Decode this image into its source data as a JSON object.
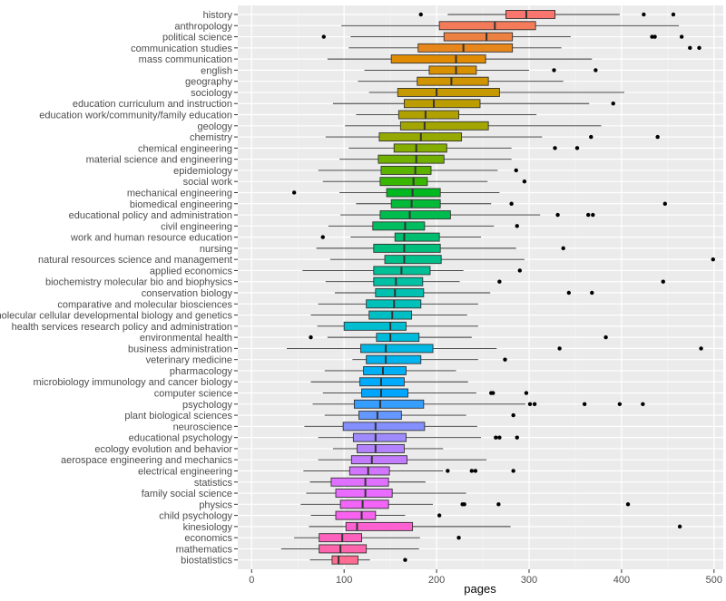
{
  "chart_data": {
    "type": "boxplot",
    "title": "",
    "xlabel": "pages",
    "ylabel": "",
    "xlim": [
      -15,
      510
    ],
    "x_ticks": [
      0,
      100,
      200,
      300,
      400,
      500
    ],
    "x_tick_labels": [
      "0",
      "100",
      "200",
      "300",
      "400",
      "500"
    ],
    "grid": true,
    "legend": "none",
    "categories": [
      "history",
      "anthropology",
      "political science",
      "communication studies",
      "mass communication",
      "english",
      "geography",
      "sociology",
      "education curriculum and instruction",
      "education work/community/family education",
      "geology",
      "chemistry",
      "chemical engineering",
      "material science and engineering",
      "epidemiology",
      "social work",
      "mechanical engineering",
      "biomedical engineering",
      "educational policy and administration",
      "civil engineering",
      "work and human resource education",
      "nursing",
      "natural resources science and management",
      "applied economics",
      "biochemistry molecular bio and biophysics",
      "conservation biology",
      "comparative and molecular biosciences",
      "molecular cellular developmental biology and genetics",
      "health services research policy and administration",
      "environmental health",
      "business administration",
      "veterinary medicine",
      "pharmacology",
      "microbiology immunology and cancer biology",
      "computer science",
      "psychology",
      "plant biological sciences",
      "neuroscience",
      "educational psychology",
      "ecology evolution and behavior",
      "aerospace engineering and mechanics",
      "electrical engineering",
      "statistics",
      "family social science",
      "physics",
      "child psychology",
      "kinesiology",
      "economics",
      "mathematics",
      "biostatistics"
    ],
    "series": [
      {
        "category": "history",
        "whisker_low": 212,
        "q1": 275,
        "median": 297,
        "q3": 328,
        "whisker_high": 398,
        "outliers": [
          183,
          424,
          456
        ],
        "color": "#F8766D"
      },
      {
        "category": "anthropology",
        "whisker_low": 97,
        "q1": 203,
        "median": 263,
        "q3": 307,
        "whisker_high": 462,
        "outliers": [],
        "color": "#F37B59"
      },
      {
        "category": "political science",
        "whisker_low": 107,
        "q1": 208,
        "median": 254,
        "q3": 282,
        "whisker_high": 345,
        "outliers": [
          78,
          433,
          436,
          465
        ],
        "color": "#ED8141"
      },
      {
        "category": "communication studies",
        "whisker_low": 105,
        "q1": 180,
        "median": 229,
        "q3": 282,
        "whisker_high": 335,
        "outliers": [
          474,
          484
        ],
        "color": "#E7861B"
      },
      {
        "category": "mass communication",
        "whisker_low": 82,
        "q1": 151,
        "median": 221,
        "q3": 253,
        "whisker_high": 368,
        "outliers": [],
        "color": "#E08B00"
      },
      {
        "category": "english",
        "whisker_low": 122,
        "q1": 192,
        "median": 221,
        "q3": 243,
        "whisker_high": 300,
        "outliers": [
          327,
          372
        ],
        "color": "#D89000"
      },
      {
        "category": "geography",
        "whisker_low": 115,
        "q1": 179,
        "median": 216,
        "q3": 256,
        "whisker_high": 337,
        "outliers": [],
        "color": "#CF9400"
      },
      {
        "category": "sociology",
        "whisker_low": 127,
        "q1": 158,
        "median": 200,
        "q3": 268,
        "whisker_high": 403,
        "outliers": [],
        "color": "#C69900"
      },
      {
        "category": "education curriculum and instruction",
        "whisker_low": 88,
        "q1": 165,
        "median": 197,
        "q3": 247,
        "whisker_high": 365,
        "outliers": [
          391
        ],
        "color": "#BB9D00"
      },
      {
        "category": "education work/community/family education",
        "whisker_low": 113,
        "q1": 159,
        "median": 188,
        "q3": 224,
        "whisker_high": 308,
        "outliers": [],
        "color": "#B0A100"
      },
      {
        "category": "geology",
        "whisker_low": 101,
        "q1": 161,
        "median": 187,
        "q3": 256,
        "whisker_high": 378,
        "outliers": [],
        "color": "#A3A500"
      },
      {
        "category": "chemistry",
        "whisker_low": 80,
        "q1": 138,
        "median": 183,
        "q3": 227,
        "whisker_high": 314,
        "outliers": [
          367,
          439
        ],
        "color": "#95A900"
      },
      {
        "category": "chemical engineering",
        "whisker_low": 105,
        "q1": 154,
        "median": 178,
        "q3": 211,
        "whisker_high": 281,
        "outliers": [
          328,
          352
        ],
        "color": "#85AD00"
      },
      {
        "category": "material science and engineering",
        "whisker_low": 95,
        "q1": 137,
        "median": 178,
        "q3": 208,
        "whisker_high": 281,
        "outliers": [],
        "color": "#72B000"
      },
      {
        "category": "epidemiology",
        "whisker_low": 72,
        "q1": 140,
        "median": 177,
        "q3": 194,
        "whisker_high": 266,
        "outliers": [
          286
        ],
        "color": "#5BB300"
      },
      {
        "category": "social work",
        "whisker_low": 77,
        "q1": 139,
        "median": 175,
        "q3": 190,
        "whisker_high": 255,
        "outliers": [
          295
        ],
        "color": "#39B600"
      },
      {
        "category": "mechanical engineering",
        "whisker_low": 95,
        "q1": 146,
        "median": 174,
        "q3": 204,
        "whisker_high": 268,
        "outliers": [
          46
        ],
        "color": "#00B81F"
      },
      {
        "category": "biomedical engineering",
        "whisker_low": 113,
        "q1": 151,
        "median": 173,
        "q3": 204,
        "whisker_high": 259,
        "outliers": [
          281,
          447
        ],
        "color": "#00BA38"
      },
      {
        "category": "educational policy and administration",
        "whisker_low": 96,
        "q1": 139,
        "median": 171,
        "q3": 215,
        "whisker_high": 312,
        "outliers": [
          331,
          364,
          369
        ],
        "color": "#00BB4E"
      },
      {
        "category": "civil engineering",
        "whisker_low": 83,
        "q1": 131,
        "median": 166,
        "q3": 187,
        "whisker_high": 262,
        "outliers": [
          287
        ],
        "color": "#00BD5F"
      },
      {
        "category": "work and human resource education",
        "whisker_low": 107,
        "q1": 155,
        "median": 165,
        "q3": 203,
        "whisker_high": 248,
        "outliers": [
          77
        ],
        "color": "#00BE6F"
      },
      {
        "category": "nursing",
        "whisker_low": 70,
        "q1": 132,
        "median": 165,
        "q3": 204,
        "whisker_high": 286,
        "outliers": [
          337
        ],
        "color": "#00BF7D"
      },
      {
        "category": "natural resources science and management",
        "whisker_low": 85,
        "q1": 144,
        "median": 165,
        "q3": 205,
        "whisker_high": 295,
        "outliers": [
          499
        ],
        "color": "#00C08B"
      },
      {
        "category": "applied economics",
        "whisker_low": 55,
        "q1": 132,
        "median": 162,
        "q3": 193,
        "whisker_high": 229,
        "outliers": [
          290
        ],
        "color": "#00C097"
      },
      {
        "category": "biochemistry molecular bio and biophysics",
        "whisker_low": 80,
        "q1": 132,
        "median": 156,
        "q3": 185,
        "whisker_high": 225,
        "outliers": [
          268,
          445
        ],
        "color": "#00C1A3"
      },
      {
        "category": "conservation biology",
        "whisker_low": 90,
        "q1": 134,
        "median": 155,
        "q3": 186,
        "whisker_high": 258,
        "outliers": [
          343,
          368
        ],
        "color": "#00C0AF"
      },
      {
        "category": "comparative and molecular biosciences",
        "whisker_low": 72,
        "q1": 124,
        "median": 154,
        "q3": 183,
        "whisker_high": 245,
        "outliers": [],
        "color": "#00C0BA"
      },
      {
        "category": "molecular cellular developmental biology and genetics",
        "whisker_low": 64,
        "q1": 127,
        "median": 152,
        "q3": 173,
        "whisker_high": 233,
        "outliers": [],
        "color": "#00BFC4"
      },
      {
        "category": "health services research policy and administration",
        "whisker_low": 71,
        "q1": 100,
        "median": 150,
        "q3": 167,
        "whisker_high": 245,
        "outliers": [],
        "color": "#00BDCF"
      },
      {
        "category": "environmental health",
        "whisker_low": 82,
        "q1": 135,
        "median": 150,
        "q3": 181,
        "whisker_high": 238,
        "outliers": [
          64,
          383
        ],
        "color": "#00BBDA"
      },
      {
        "category": "business administration",
        "whisker_low": 38,
        "q1": 118,
        "median": 145,
        "q3": 196,
        "whisker_high": 265,
        "outliers": [
          333,
          486
        ],
        "color": "#00B8E3"
      },
      {
        "category": "veterinary medicine",
        "whisker_low": 109,
        "q1": 124,
        "median": 145,
        "q3": 183,
        "whisker_high": 245,
        "outliers": [
          274
        ],
        "color": "#00B4EF"
      },
      {
        "category": "pharmacology",
        "whisker_low": 79,
        "q1": 121,
        "median": 142,
        "q3": 167,
        "whisker_high": 221,
        "outliers": [],
        "color": "#00B0F6"
      },
      {
        "category": "microbiology immunology and cancer biology",
        "whisker_low": 64,
        "q1": 117,
        "median": 140,
        "q3": 165,
        "whisker_high": 234,
        "outliers": [],
        "color": "#00ABFD"
      },
      {
        "category": "computer science",
        "whisker_low": 77,
        "q1": 119,
        "median": 140,
        "q3": 169,
        "whisker_high": 243,
        "outliers": [
          259,
          261,
          297
        ],
        "color": "#00A5FF"
      },
      {
        "category": "psychology",
        "whisker_low": 66,
        "q1": 111,
        "median": 139,
        "q3": 186,
        "whisker_high": 296,
        "outliers": [
          301,
          306,
          360,
          398,
          423
        ],
        "color": "#359EFF"
      },
      {
        "category": "plant biological sciences",
        "whisker_low": 79,
        "q1": 116,
        "median": 136,
        "q3": 162,
        "whisker_high": 232,
        "outliers": [
          283
        ],
        "color": "#6497FF"
      },
      {
        "category": "neuroscience",
        "whisker_low": 57,
        "q1": 99,
        "median": 134,
        "q3": 187,
        "whisker_high": 244,
        "outliers": [],
        "color": "#8590FF"
      },
      {
        "category": "educational psychology",
        "whisker_low": 72,
        "q1": 110,
        "median": 134,
        "q3": 167,
        "whisker_high": 248,
        "outliers": [
          264,
          268,
          287
        ],
        "color": "#9F8AFF"
      },
      {
        "category": "ecology evolution and behavior",
        "whisker_low": 88,
        "q1": 114,
        "median": 134,
        "q3": 165,
        "whisker_high": 207,
        "outliers": [],
        "color": "#B383FF"
      },
      {
        "category": "aerospace engineering and mechanics",
        "whisker_low": 72,
        "q1": 108,
        "median": 130,
        "q3": 168,
        "whisker_high": 254,
        "outliers": [],
        "color": "#C47CFF"
      },
      {
        "category": "electrical engineering",
        "whisker_low": 56,
        "q1": 106,
        "median": 126,
        "q3": 149,
        "whisker_high": 207,
        "outliers": [
          212,
          238,
          242,
          283
        ],
        "color": "#D376FF"
      },
      {
        "category": "statistics",
        "whisker_low": 63,
        "q1": 86,
        "median": 123,
        "q3": 148,
        "whisker_high": 188,
        "outliers": [],
        "color": "#E070FF"
      },
      {
        "category": "family social science",
        "whisker_low": 59,
        "q1": 91,
        "median": 123,
        "q3": 152,
        "whisker_high": 232,
        "outliers": [],
        "color": "#EA6BFF"
      },
      {
        "category": "physics",
        "whisker_low": 53,
        "q1": 96,
        "median": 120,
        "q3": 148,
        "whisker_high": 196,
        "outliers": [
          228,
          230,
          267,
          407
        ],
        "color": "#F364F9"
      },
      {
        "category": "child psychology",
        "whisker_low": 64,
        "q1": 91,
        "median": 119,
        "q3": 134,
        "whisker_high": 166,
        "outliers": [
          203
        ],
        "color": "#F962F0"
      },
      {
        "category": "kinesiology",
        "whisker_low": 62,
        "q1": 102,
        "median": 114,
        "q3": 174,
        "whisker_high": 280,
        "outliers": [
          463
        ],
        "color": "#FD61D1"
      },
      {
        "category": "economics",
        "whisker_low": 46,
        "q1": 73,
        "median": 98,
        "q3": 119,
        "whisker_high": 182,
        "outliers": [
          224
        ],
        "color": "#FF62BC"
      },
      {
        "category": "mathematics",
        "whisker_low": 32,
        "q1": 73,
        "median": 96,
        "q3": 124,
        "whisker_high": 181,
        "outliers": [],
        "color": "#FF65AC"
      },
      {
        "category": "biostatistics",
        "whisker_low": 63,
        "q1": 87,
        "median": 94,
        "q3": 115,
        "whisker_high": 128,
        "outliers": [
          166
        ],
        "color": "#FF6C91"
      }
    ]
  }
}
